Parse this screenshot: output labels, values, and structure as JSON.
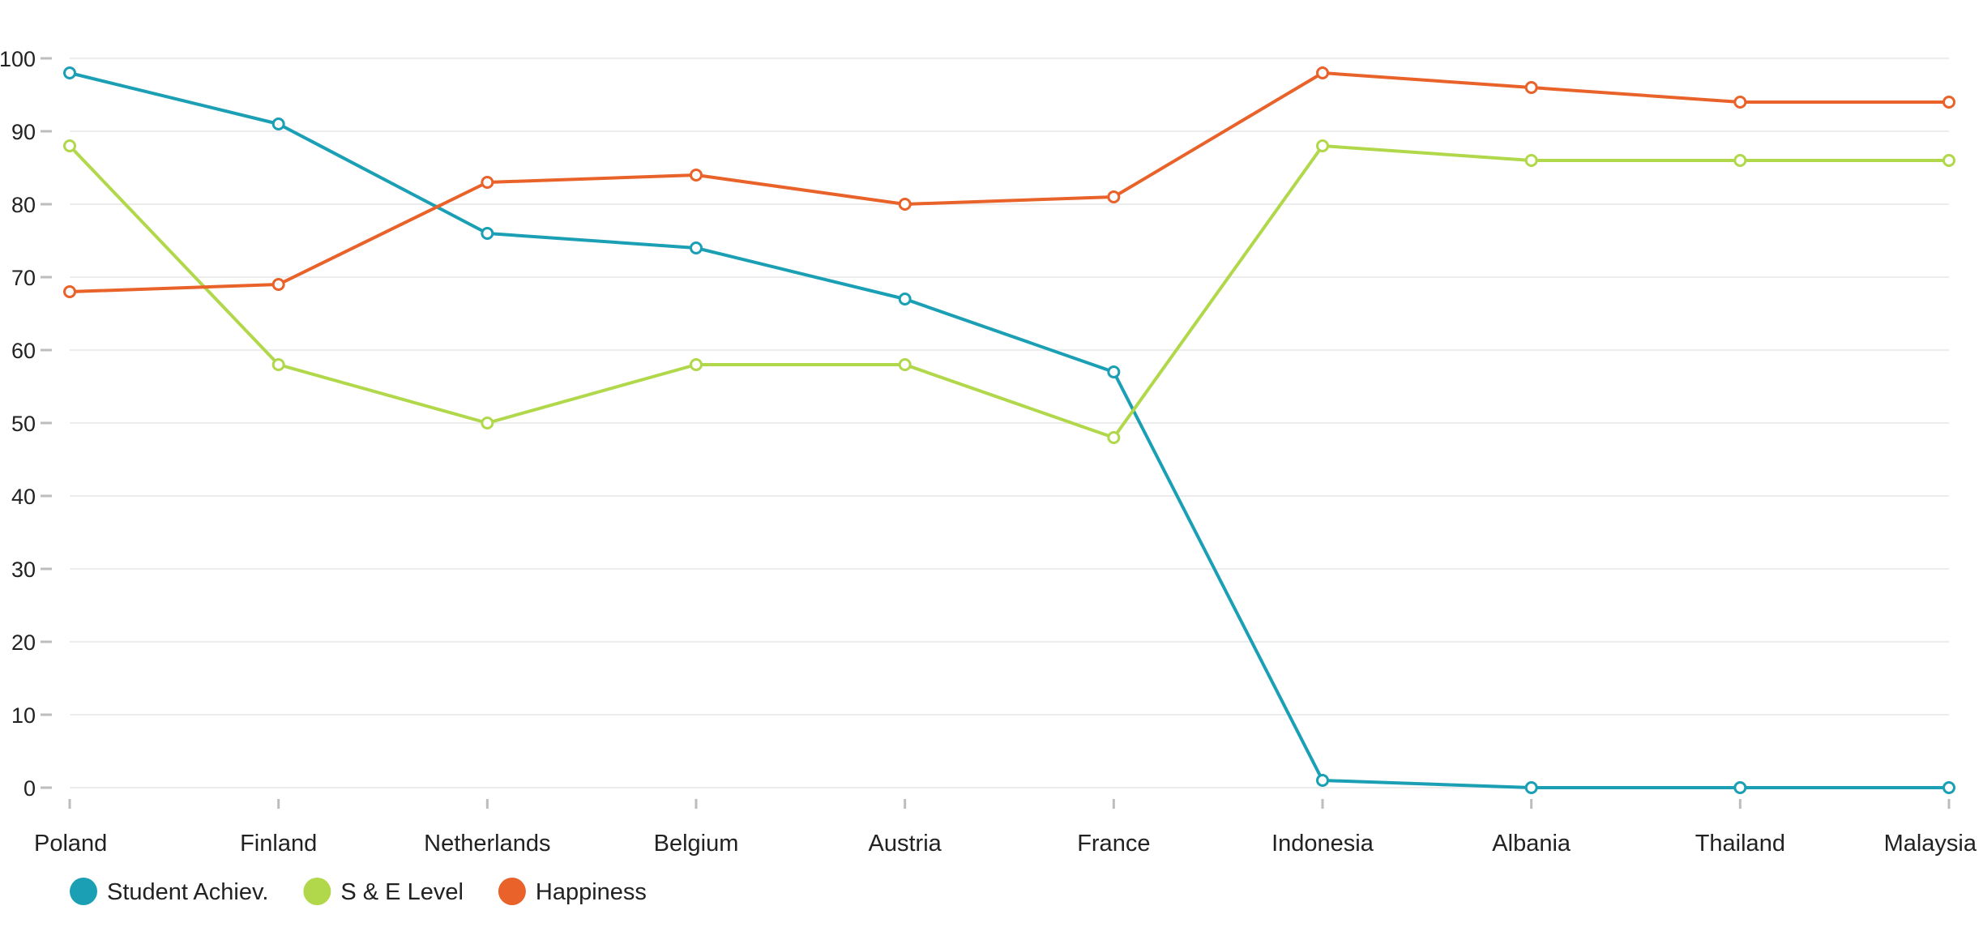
{
  "chart_data": {
    "type": "line",
    "title": "",
    "xlabel": "",
    "ylabel": "",
    "categories": [
      "Poland",
      "Finland",
      "Netherlands",
      "Belgium",
      "Austria",
      "France",
      "Indonesia",
      "Albania",
      "Thailand",
      "Malaysia"
    ],
    "ylim": [
      0,
      100
    ],
    "yticks": [
      0,
      10,
      20,
      30,
      40,
      50,
      60,
      70,
      80,
      90,
      100
    ],
    "grid": true,
    "legend_position": "bottom-left",
    "series": [
      {
        "name": "Student Achiev.",
        "color": "#1a9fb5",
        "values": [
          98,
          91,
          76,
          74,
          67,
          57,
          1,
          0,
          0,
          0
        ]
      },
      {
        "name": "S & E Level",
        "color": "#b0d84a",
        "values": [
          88,
          58,
          50,
          58,
          58,
          48,
          88,
          86,
          86,
          86
        ]
      },
      {
        "name": "Happiness",
        "color": "#e8622a",
        "values": [
          68,
          69,
          83,
          84,
          80,
          81,
          98,
          96,
          94,
          94
        ]
      }
    ]
  }
}
